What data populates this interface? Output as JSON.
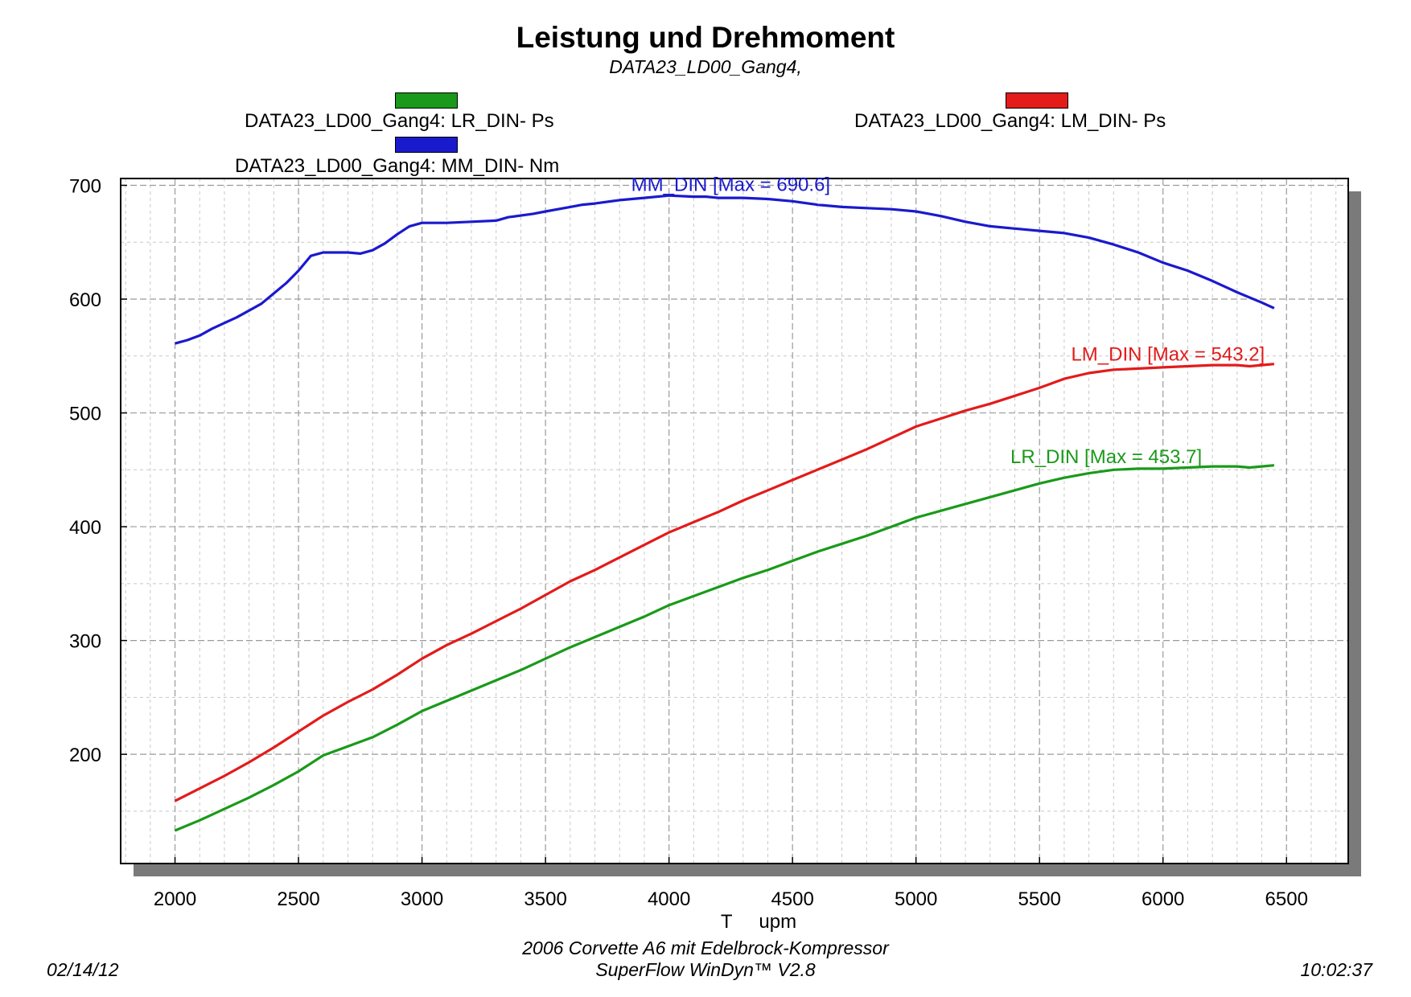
{
  "chart_data": {
    "type": "line",
    "title": "Leistung und Drehmoment",
    "subtitle": "DATA23_LD00_Gang4,",
    "xlabel": "T     upm",
    "xlim": [
      1780,
      6750
    ],
    "ylim": [
      104,
      706
    ],
    "xticks": [
      2000,
      2500,
      3000,
      3500,
      4000,
      4500,
      5000,
      5500,
      6000,
      6500
    ],
    "yticks": [
      200,
      300,
      400,
      500,
      600,
      700
    ],
    "grid": true,
    "legend": [
      {
        "label": "DATA23_LD00_Gang4: LR_DIN-  Ps",
        "color": "#1a9a1a"
      },
      {
        "label": "DATA23_LD00_Gang4: LM_DIN-  Ps",
        "color": "#e31b1b"
      },
      {
        "label": "DATA23_LD00_Gang4: MM_DIN-  Nm",
        "color": "#1a1acd"
      }
    ],
    "series": [
      {
        "name": "MM_DIN",
        "color": "#1a1acd",
        "annotation": "MM_DIN [Max = 690.6]",
        "x": [
          2000,
          2050,
          2100,
          2150,
          2200,
          2250,
          2300,
          2350,
          2400,
          2450,
          2500,
          2550,
          2600,
          2650,
          2700,
          2750,
          2800,
          2850,
          2900,
          2950,
          3000,
          3100,
          3200,
          3300,
          3350,
          3450,
          3500,
          3600,
          3650,
          3700,
          3800,
          3900,
          4000,
          4100,
          4150,
          4200,
          4300,
          4400,
          4500,
          4600,
          4700,
          4800,
          4900,
          5000,
          5100,
          5200,
          5300,
          5400,
          5500,
          5600,
          5700,
          5800,
          5900,
          6000,
          6100,
          6200,
          6300,
          6400,
          6450
        ],
        "y": [
          561,
          564,
          568,
          574,
          579,
          584,
          590,
          596,
          605,
          614,
          625,
          638,
          641,
          641,
          641,
          640,
          643,
          649,
          657,
          664,
          667,
          667,
          668,
          669,
          672,
          675,
          677,
          681,
          683,
          684,
          687,
          689,
          691,
          690,
          690,
          689,
          689,
          688,
          686,
          683,
          681,
          680,
          679,
          677,
          673,
          668,
          664,
          662,
          660,
          658,
          654,
          648,
          641,
          632,
          625,
          616,
          606,
          597,
          592
        ]
      },
      {
        "name": "LM_DIN",
        "color": "#e31b1b",
        "annotation": "LM_DIN [Max = 543.2]",
        "x": [
          2000,
          2100,
          2200,
          2300,
          2400,
          2500,
          2600,
          2700,
          2800,
          2900,
          3000,
          3100,
          3200,
          3300,
          3400,
          3500,
          3600,
          3700,
          3800,
          3900,
          4000,
          4100,
          4200,
          4300,
          4400,
          4500,
          4600,
          4700,
          4800,
          4900,
          5000,
          5100,
          5200,
          5300,
          5400,
          5500,
          5600,
          5700,
          5800,
          5900,
          6000,
          6100,
          6200,
          6300,
          6350,
          6400,
          6450
        ],
        "y": [
          159,
          170,
          181,
          193,
          206,
          220,
          234,
          246,
          257,
          270,
          284,
          296,
          306,
          317,
          328,
          340,
          352,
          362,
          373,
          384,
          395,
          404,
          413,
          423,
          432,
          441,
          450,
          459,
          468,
          478,
          488,
          495,
          502,
          508,
          515,
          522,
          530,
          535,
          538,
          539,
          540,
          541,
          542,
          542,
          541,
          542,
          543
        ]
      },
      {
        "name": "LR_DIN",
        "color": "#1a9a1a",
        "annotation": "LR_DIN [Max = 453.7]",
        "x": [
          2000,
          2100,
          2200,
          2300,
          2400,
          2500,
          2600,
          2700,
          2800,
          2900,
          3000,
          3100,
          3200,
          3300,
          3400,
          3500,
          3600,
          3700,
          3800,
          3900,
          4000,
          4100,
          4200,
          4300,
          4400,
          4500,
          4600,
          4700,
          4800,
          4900,
          5000,
          5100,
          5200,
          5300,
          5400,
          5500,
          5600,
          5700,
          5800,
          5900,
          6000,
          6100,
          6200,
          6300,
          6350,
          6400,
          6450
        ],
        "y": [
          133,
          142,
          152,
          162,
          173,
          185,
          199,
          207,
          215,
          226,
          238,
          247,
          256,
          265,
          274,
          284,
          294,
          303,
          312,
          321,
          331,
          339,
          347,
          355,
          362,
          370,
          378,
          385,
          392,
          400,
          408,
          414,
          420,
          426,
          432,
          438,
          443,
          447,
          450,
          451,
          451,
          452,
          453,
          453,
          452,
          453,
          454
        ]
      }
    ]
  },
  "footer": {
    "date": "02/14/12",
    "time": "10:02:37",
    "line1": "2006 Corvette A6 mit Edelbrock-Kompressor",
    "line2": "SuperFlow WinDyn™ V2.8"
  }
}
